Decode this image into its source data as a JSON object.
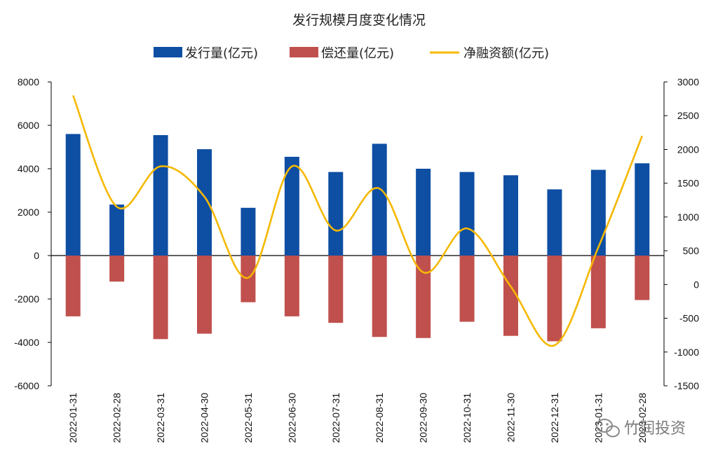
{
  "chart_data": {
    "type": "bar",
    "title": "发行规模月度变化情况",
    "categories": [
      "2022-01-31",
      "2022-02-28",
      "2022-03-31",
      "2022-04-30",
      "2022-05-31",
      "2022-06-30",
      "2022-07-31",
      "2022-08-31",
      "2022-09-30",
      "2022-10-31",
      "2022-11-30",
      "2022-12-31",
      "2023-01-31",
      "2023-02-28"
    ],
    "series": [
      {
        "name": "发行量(亿元)",
        "type": "bar",
        "axis": "left",
        "color": "#0e4ea3",
        "values": [
          5600,
          2350,
          5550,
          4900,
          2200,
          4550,
          3850,
          5150,
          4000,
          3850,
          3700,
          3050,
          3950,
          4250
        ]
      },
      {
        "name": "偿还量(亿元)",
        "type": "bar",
        "axis": "left",
        "color": "#c0504d",
        "values": [
          -2800,
          -1200,
          -3850,
          -3600,
          -2150,
          -2800,
          -3100,
          -3750,
          -3800,
          -3050,
          -3700,
          -3950,
          -3350,
          -2050
        ]
      },
      {
        "name": "净融资额(亿元)",
        "type": "line",
        "axis": "right",
        "color": "#f5b800",
        "values": [
          2800,
          1150,
          1750,
          1300,
          100,
          1750,
          800,
          1420,
          180,
          830,
          -30,
          -900,
          550,
          2200
        ]
      }
    ],
    "y_left": {
      "min": -6000,
      "max": 8000,
      "ticks": [
        8000,
        6000,
        4000,
        2000,
        0,
        -2000,
        -4000,
        -6000
      ]
    },
    "y_right": {
      "min": -1500,
      "max": 3000,
      "ticks": [
        3000,
        2500,
        2000,
        1500,
        1000,
        500,
        0,
        -500,
        -1000,
        -1500
      ]
    },
    "legend_position": "top",
    "grid": false
  },
  "watermark": {
    "text": "竹润投资",
    "icon": "wechat-icon"
  }
}
